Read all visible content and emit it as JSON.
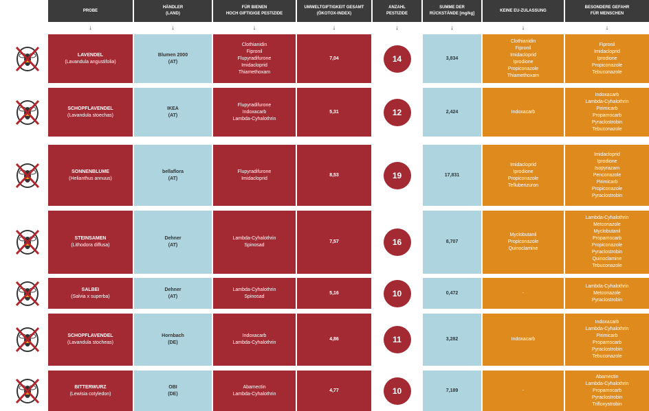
{
  "headers": [
    "PROBE",
    "HÄNDLER\n(LAND)",
    "FÜR BIENEN\nHOCH GIFTIGIGE PESTIZIDE",
    "UMWELTGIFTIGKEIT GESAMT\n(ÖKOTOX-INDEX)",
    "ANZAHL\nPESTIZIDE",
    "SUMME DER\nRÜCKSTÄNDE [mg/kg]",
    "KEINE EU-ZULASSUNG",
    "BESONDERE GEFAHR\nFÜR MENSCHEN"
  ],
  "colors": {
    "header": "#3b3b3b",
    "red": "#a32a33",
    "blue": "#add4df",
    "orange": "#de8a1d"
  },
  "row_icon": "crossed-out-bee-icon",
  "rows": [
    {
      "probe": "LAVENDEL",
      "latin": "(Lavandula angustifolia)",
      "haendler": "Blumen 2000\n(AT)",
      "bienen": "Clothianidin\nFipronil\nFlupyradifurone\nImidacloprid\nThiamethoxam",
      "oekotox": "7,04",
      "anzahl": "14",
      "summe": "3,834",
      "keine_eu": "Clothianidin\nFipronil\nImidacloprid\nIprodione\nPropiconazole\nThiamethoxam",
      "gefahr": "Fipronil\nImidacloprid\nIprodione\nPropiconazole\nTebuconazole"
    },
    {
      "probe": "SCHOPFLAVENDEL",
      "latin": "(Lavandula stoechas)",
      "haendler": "IKEA\n(AT)",
      "bienen": "Flupyradifurone\nIndoxacarb\nLambda-Cyhalothrin",
      "oekotox": "5,31",
      "anzahl": "12",
      "summe": "2,424",
      "keine_eu": "Indoxacarb",
      "gefahr": "Indoxacarb\nLambda-Cyhalothrin\nPirimicarb\nPropamocarb\nPyraclostrobin\nTebuconazole"
    },
    {
      "probe": "SONNENBLUME",
      "latin": "(Helianthus annuus)",
      "haendler": "bellaflora\n(AT)",
      "bienen": "Flupyradifurone\nImidacloprid",
      "oekotox": "8,53",
      "anzahl": "19",
      "summe": "17,831",
      "keine_eu": "Imidacloprid\nIprodione\nPropiconazole\nTeflubenzuron",
      "gefahr": "Imidacloprid\nIprodione\nIsopyrazam\nPenconazole\nPirimicarb\nPropiconazole\nPyraclostrobin"
    },
    {
      "probe": "STEINSAMEN",
      "latin": "(Lithodora diffusa)",
      "haendler": "Dehner\n(AT)",
      "bienen": "Lambda-Cyhalothrin\nSpinosad",
      "oekotox": "7,57",
      "anzahl": "16",
      "summe": "8,707",
      "keine_eu": "Myclobutanil\nPropiconazole\nQuinoclamine",
      "gefahr": "Lambda-Cyhalothrin\nMetconazole\nMyclobutanil\nPropamocarb\nPropiconazole\nPyraclostrobin\nQuinoclamine\nTebuconazole"
    },
    {
      "probe": "SALBEI",
      "latin": "(Salvia x superba)",
      "haendler": "Dehner\n(AT)",
      "bienen": "Lambda-Cyhalothrin\nSpinosad",
      "oekotox": "5,16",
      "anzahl": "10",
      "summe": "0,472",
      "keine_eu": "-",
      "gefahr": "Lambda-Cyhalothrin\nMetconazole\nPyraclostrobin"
    },
    {
      "probe": "SCHOPFLAVENDEL",
      "latin": "(Lavandula stocheas)",
      "haendler": "Hornbach\n(DE)",
      "bienen": "Indoxacarb\nLambda-Cyhalothrin",
      "oekotox": "4,86",
      "anzahl": "11",
      "summe": "3,282",
      "keine_eu": "Indoxacarb",
      "gefahr": "Indoxacarb\nLambda-Cyhalothrin\nPirimicarb\nPropamocarb\nPyraclostrobin\nTebuconazole"
    },
    {
      "probe": "BITTERWURZ",
      "latin": "(Lewisia cotyledon)",
      "haendler": "OBI\n(DE)",
      "bienen": "Abamectin\nLambda-Cyhalothrin",
      "oekotox": "4,77",
      "anzahl": "10",
      "summe": "7,189",
      "keine_eu": "-",
      "gefahr": "Abamectin\nLambda-Cyhalothrin\nPropamocarb\nPyraclostrobin\nTrifloxystrobin"
    }
  ]
}
